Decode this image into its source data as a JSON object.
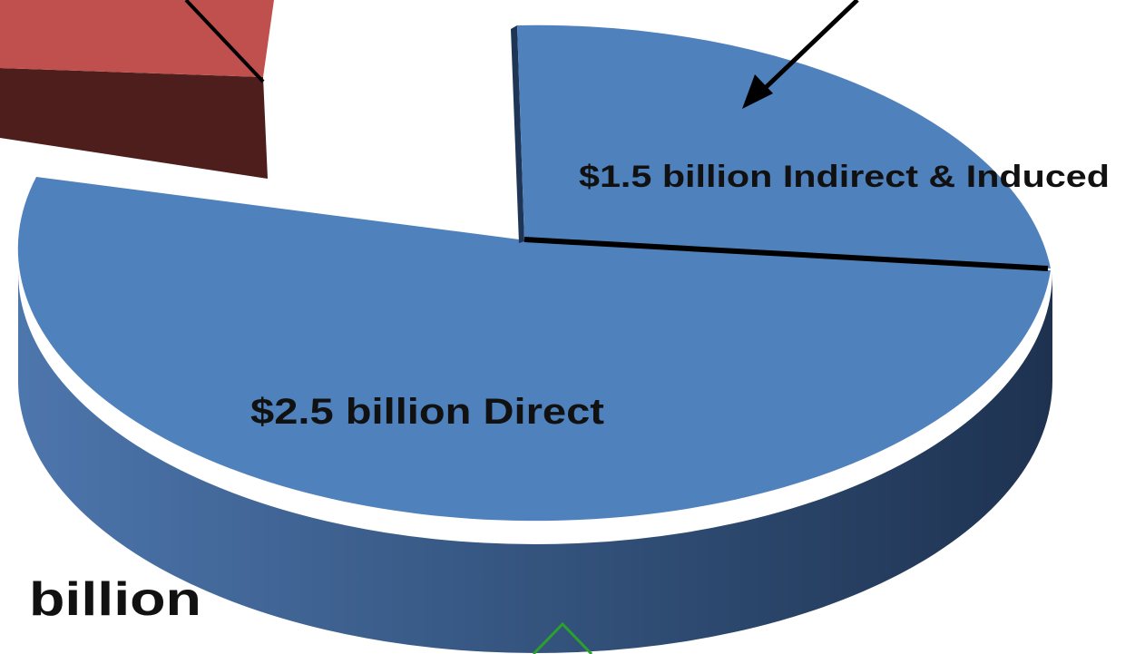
{
  "labels": {
    "indirect": "$1.5 billion Indirect & Induced",
    "direct": "$2.5 billion Direct",
    "fragment": "billion"
  }
}
